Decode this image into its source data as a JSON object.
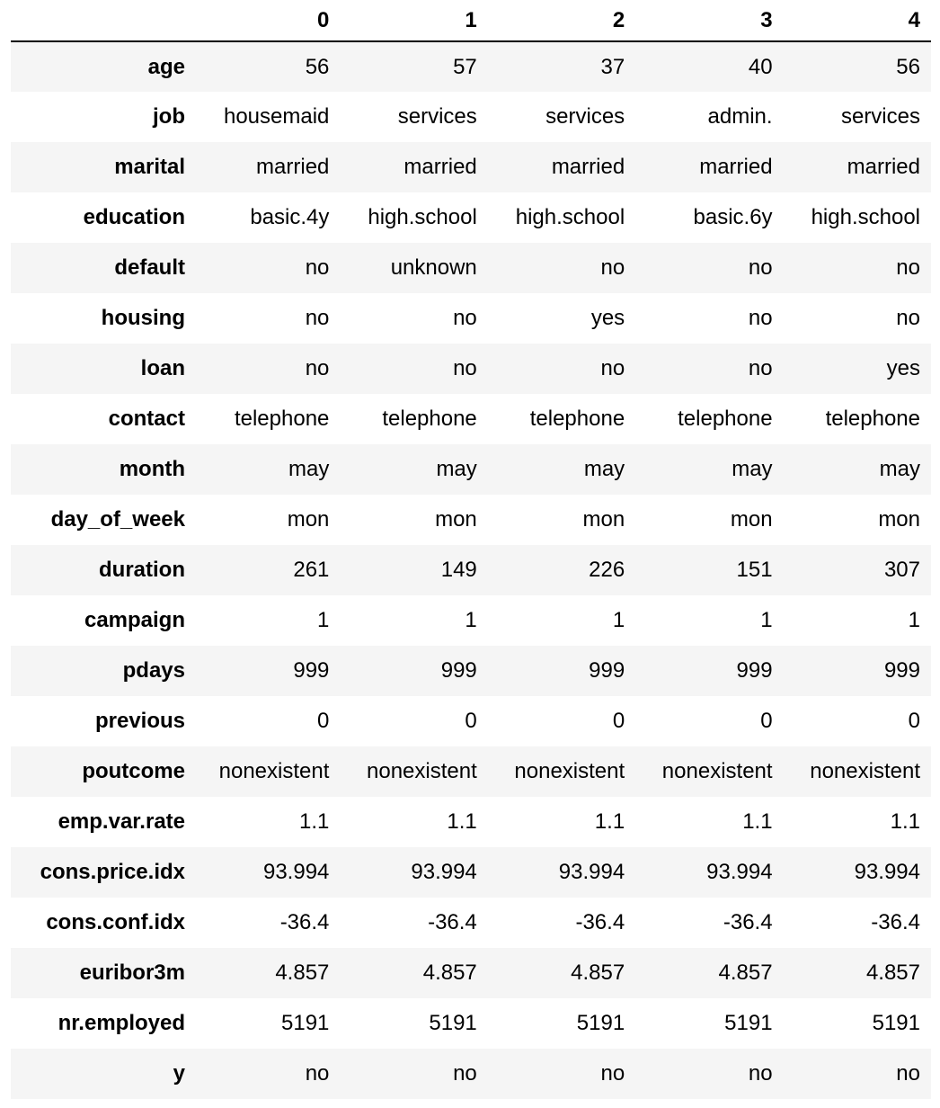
{
  "table": {
    "columns": [
      "0",
      "1",
      "2",
      "3",
      "4"
    ],
    "rows": [
      {
        "label": "age",
        "values": [
          "56",
          "57",
          "37",
          "40",
          "56"
        ]
      },
      {
        "label": "job",
        "values": [
          "housemaid",
          "services",
          "services",
          "admin.",
          "services"
        ]
      },
      {
        "label": "marital",
        "values": [
          "married",
          "married",
          "married",
          "married",
          "married"
        ]
      },
      {
        "label": "education",
        "values": [
          "basic.4y",
          "high.school",
          "high.school",
          "basic.6y",
          "high.school"
        ]
      },
      {
        "label": "default",
        "values": [
          "no",
          "unknown",
          "no",
          "no",
          "no"
        ]
      },
      {
        "label": "housing",
        "values": [
          "no",
          "no",
          "yes",
          "no",
          "no"
        ]
      },
      {
        "label": "loan",
        "values": [
          "no",
          "no",
          "no",
          "no",
          "yes"
        ]
      },
      {
        "label": "contact",
        "values": [
          "telephone",
          "telephone",
          "telephone",
          "telephone",
          "telephone"
        ]
      },
      {
        "label": "month",
        "values": [
          "may",
          "may",
          "may",
          "may",
          "may"
        ]
      },
      {
        "label": "day_of_week",
        "values": [
          "mon",
          "mon",
          "mon",
          "mon",
          "mon"
        ]
      },
      {
        "label": "duration",
        "values": [
          "261",
          "149",
          "226",
          "151",
          "307"
        ]
      },
      {
        "label": "campaign",
        "values": [
          "1",
          "1",
          "1",
          "1",
          "1"
        ]
      },
      {
        "label": "pdays",
        "values": [
          "999",
          "999",
          "999",
          "999",
          "999"
        ]
      },
      {
        "label": "previous",
        "values": [
          "0",
          "0",
          "0",
          "0",
          "0"
        ]
      },
      {
        "label": "poutcome",
        "values": [
          "nonexistent",
          "nonexistent",
          "nonexistent",
          "nonexistent",
          "nonexistent"
        ]
      },
      {
        "label": "emp.var.rate",
        "values": [
          "1.1",
          "1.1",
          "1.1",
          "1.1",
          "1.1"
        ]
      },
      {
        "label": "cons.price.idx",
        "values": [
          "93.994",
          "93.994",
          "93.994",
          "93.994",
          "93.994"
        ]
      },
      {
        "label": "cons.conf.idx",
        "values": [
          "-36.4",
          "-36.4",
          "-36.4",
          "-36.4",
          "-36.4"
        ]
      },
      {
        "label": "euribor3m",
        "values": [
          "4.857",
          "4.857",
          "4.857",
          "4.857",
          "4.857"
        ]
      },
      {
        "label": "nr.employed",
        "values": [
          "5191",
          "5191",
          "5191",
          "5191",
          "5191"
        ]
      },
      {
        "label": "y",
        "values": [
          "no",
          "no",
          "no",
          "no",
          "no"
        ]
      }
    ]
  },
  "colors": {
    "stripe": "#f5f5f5",
    "background": "#ffffff",
    "text": "#000000"
  }
}
